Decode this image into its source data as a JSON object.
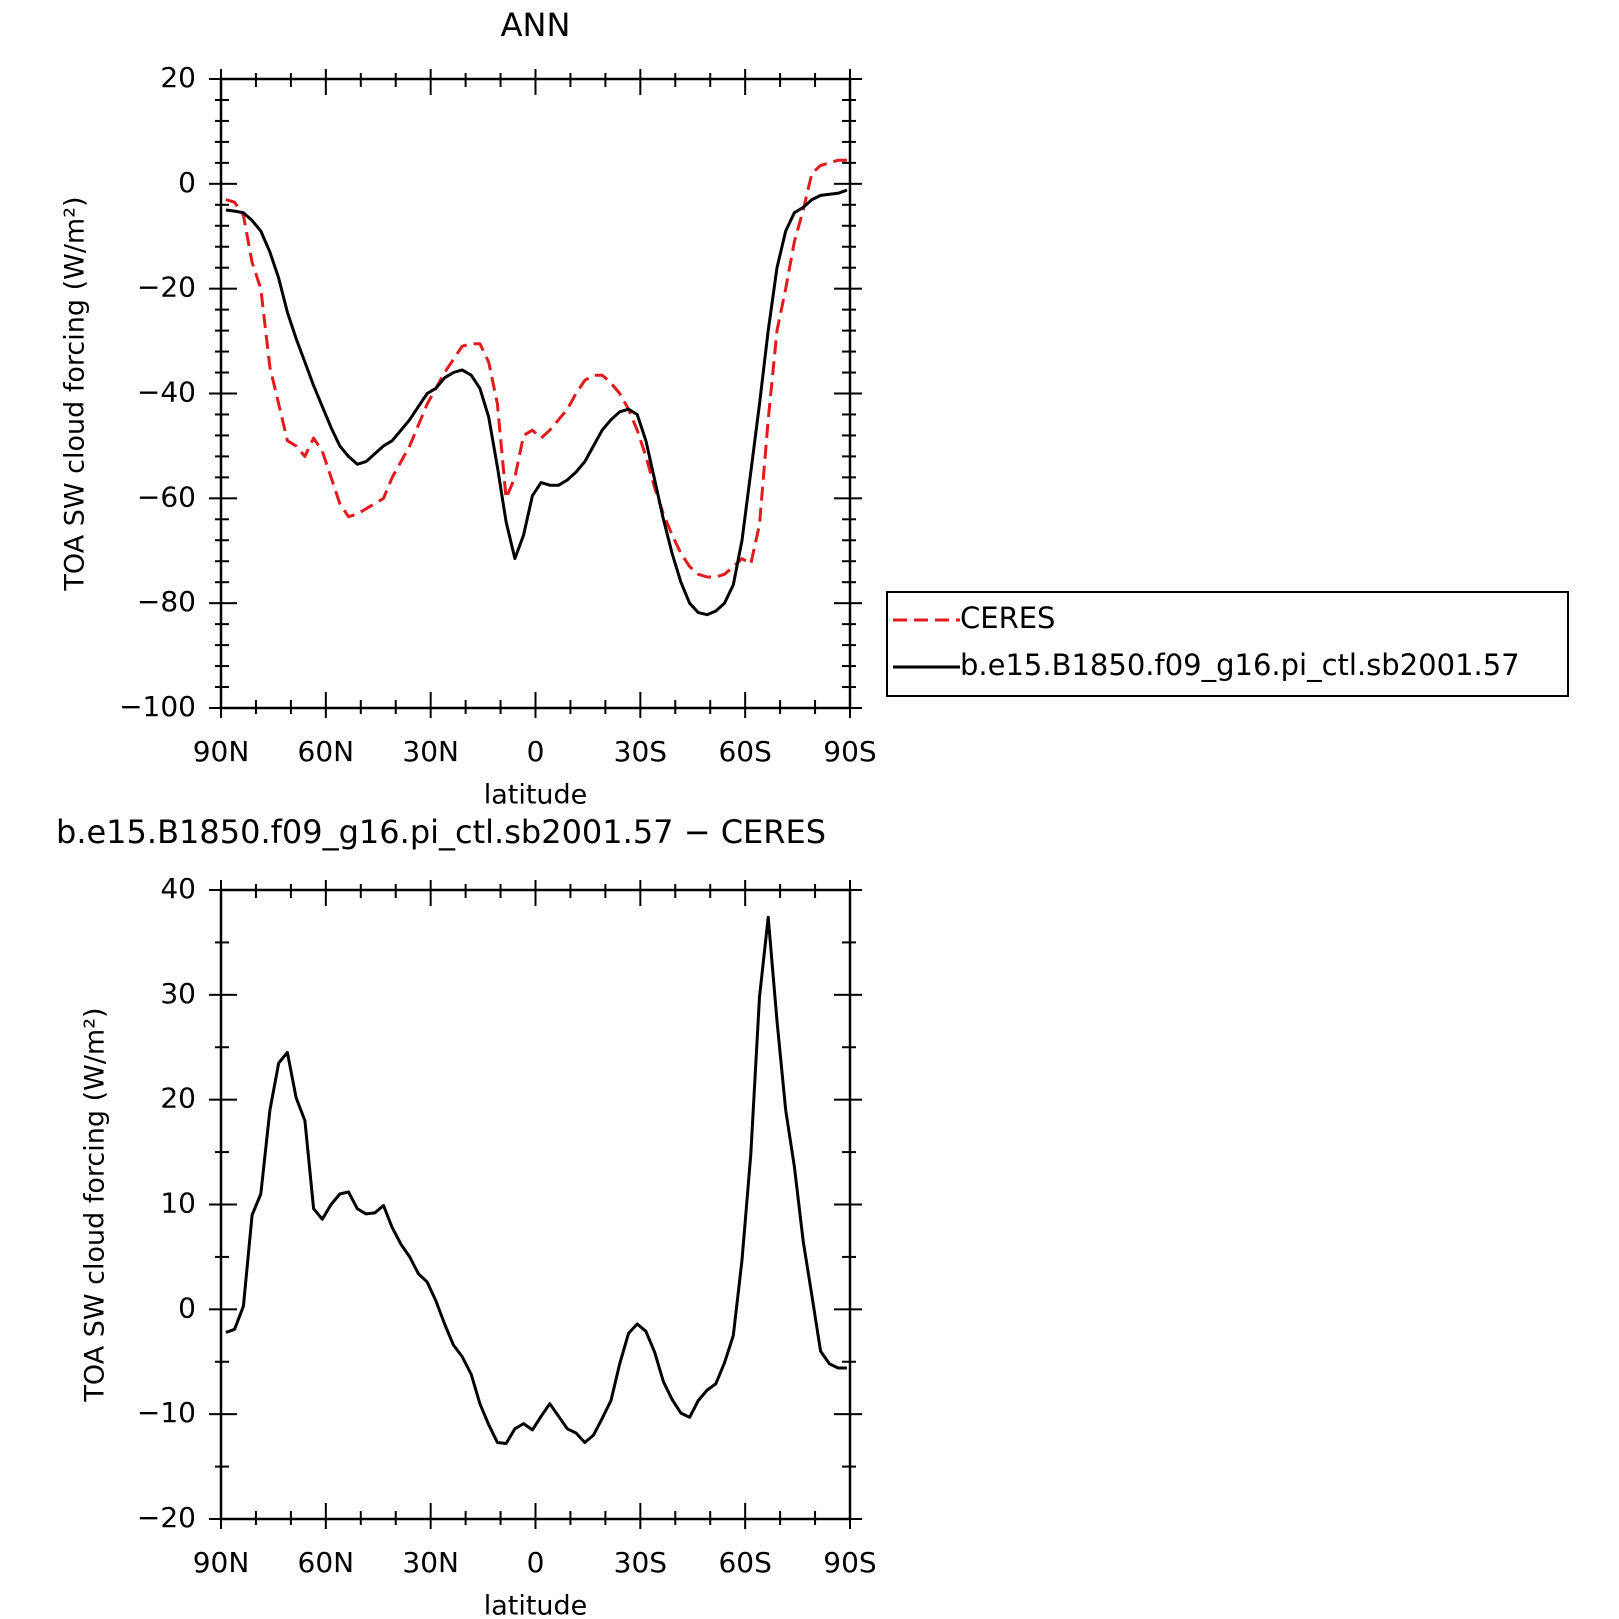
{
  "chart_data": [
    {
      "type": "line",
      "title": "ANN",
      "xlabel": "latitude",
      "ylabel": "TOA SW cloud forcing (W/m²)",
      "xlim": [
        90,
        -90
      ],
      "ylim": [
        -100,
        20
      ],
      "xticks": [
        90,
        60,
        30,
        0,
        -30,
        -60,
        -90
      ],
      "xtick_labels": [
        "90N",
        "60N",
        "30N",
        "0",
        "30S",
        "60S",
        "90S"
      ],
      "yticks": [
        20,
        0,
        -20,
        -40,
        -60,
        -80,
        -100
      ],
      "ytick_labels": [
        "20",
        "0",
        "−20",
        "−40",
        "−60",
        "−80",
        "−100"
      ],
      "legend_placement": "right",
      "series": [
        {
          "name": "CERES",
          "color": "#e31a1c",
          "dash": "dashed",
          "x": [
            88.6,
            86.1,
            83.6,
            81.1,
            78.6,
            76.0,
            73.5,
            71.0,
            68.5,
            66.0,
            63.5,
            61.0,
            58.5,
            56.0,
            53.5,
            51.0,
            48.5,
            46.0,
            43.5,
            41.0,
            38.5,
            36.0,
            33.5,
            31.0,
            28.5,
            26.0,
            23.5,
            21.0,
            18.4,
            15.9,
            13.4,
            10.9,
            8.4,
            5.9,
            3.4,
            0.9,
            -1.6,
            -4.1,
            -6.6,
            -9.1,
            -11.6,
            -14.1,
            -16.6,
            -19.1,
            -21.6,
            -24.1,
            -26.6,
            -29.1,
            -31.6,
            -34.1,
            -36.6,
            -39.1,
            -41.6,
            -44.1,
            -46.6,
            -49.1,
            -51.6,
            -54.1,
            -56.6,
            -59.1,
            -61.6,
            -64.1,
            -66.6,
            -69.1,
            -71.6,
            -74.1,
            -76.6,
            -79.1,
            -81.6,
            -84.1,
            -86.6,
            -89.1
          ],
          "y": [
            -3.0,
            -3.5,
            -6.0,
            -15.0,
            -20.0,
            -35.0,
            -42.0,
            -49.0,
            -50.0,
            -52.0,
            -48.5,
            -51.0,
            -56.0,
            -61.0,
            -63.5,
            -63.0,
            -62.0,
            -61.0,
            -60.0,
            -56.0,
            -53.0,
            -50.0,
            -46.0,
            -42.0,
            -39.0,
            -36.0,
            -33.5,
            -31.0,
            -30.5,
            -30.5,
            -34.0,
            -42.0,
            -60.0,
            -56.0,
            -48.0,
            -47.0,
            -48.5,
            -47.0,
            -45.0,
            -43.0,
            -40.0,
            -37.5,
            -36.5,
            -36.5,
            -38.0,
            -40.0,
            -43.0,
            -47.0,
            -52.0,
            -58.0,
            -63.0,
            -67.0,
            -70.5,
            -73.0,
            -74.5,
            -75.0,
            -75.0,
            -74.5,
            -73.0,
            -71.5,
            -72.5,
            -65.0,
            -45.0,
            -28.0,
            -20.0,
            -11.0,
            -5.0,
            2.0,
            3.5,
            4.0,
            4.5,
            4.5
          ]
        },
        {
          "name": "b.e15.B1850.f09_g16.pi_ctl.sb2001.57",
          "color": "#000000",
          "dash": "solid",
          "x": [
            88.6,
            86.1,
            83.6,
            81.1,
            78.6,
            76.0,
            73.5,
            71.0,
            68.5,
            66.0,
            63.5,
            61.0,
            58.5,
            56.0,
            53.5,
            51.0,
            48.5,
            46.0,
            43.5,
            41.0,
            38.5,
            36.0,
            33.5,
            31.0,
            28.5,
            26.0,
            23.5,
            21.0,
            18.4,
            15.9,
            13.4,
            10.9,
            8.4,
            5.9,
            3.4,
            0.9,
            -1.6,
            -4.1,
            -6.6,
            -9.1,
            -11.6,
            -14.1,
            -16.6,
            -19.1,
            -21.6,
            -24.1,
            -26.6,
            -29.1,
            -31.6,
            -34.1,
            -36.6,
            -39.1,
            -41.6,
            -44.1,
            -46.6,
            -49.1,
            -51.6,
            -54.1,
            -56.6,
            -59.1,
            -61.6,
            -64.1,
            -66.6,
            -69.1,
            -71.6,
            -74.1,
            -76.6,
            -79.1,
            -81.6,
            -84.1,
            -86.6,
            -89.1
          ],
          "y": [
            -5.0,
            -5.2,
            -5.5,
            -7.0,
            -9.0,
            -13.0,
            -18.0,
            -24.5,
            -29.5,
            -34.0,
            -38.5,
            -42.5,
            -46.5,
            -50.0,
            -52.0,
            -53.5,
            -53.0,
            -51.5,
            -50.0,
            -49.0,
            -47.0,
            -45.0,
            -42.5,
            -40.0,
            -39.0,
            -37.0,
            -36.0,
            -35.5,
            -36.5,
            -39.0,
            -44.5,
            -54.0,
            -64.5,
            -71.5,
            -67.0,
            -59.5,
            -57.0,
            -57.5,
            -57.5,
            -56.5,
            -55.0,
            -53.0,
            -50.0,
            -47.0,
            -45.0,
            -43.5,
            -43.0,
            -44.0,
            -49.0,
            -56.5,
            -64.0,
            -70.5,
            -76.0,
            -80.0,
            -81.8,
            -82.2,
            -81.5,
            -80.0,
            -76.5,
            -68.0,
            -55.0,
            -42.0,
            -28.0,
            -16.0,
            -9.0,
            -5.5,
            -4.5,
            -3.0,
            -2.2,
            -2.0,
            -1.8,
            -1.2
          ]
        }
      ]
    },
    {
      "type": "line",
      "title": "b.e15.B1850.f09_g16.pi_ctl.sb2001.57 − CERES",
      "xlabel": "latitude",
      "ylabel": "TOA SW cloud forcing (W/m²)",
      "xlim": [
        90,
        -90
      ],
      "ylim": [
        -20,
        40
      ],
      "xticks": [
        90,
        60,
        30,
        0,
        -30,
        -60,
        -90
      ],
      "xtick_labels": [
        "90N",
        "60N",
        "30N",
        "0",
        "30S",
        "60S",
        "90S"
      ],
      "yticks": [
        40,
        30,
        20,
        10,
        0,
        -10,
        -20
      ],
      "ytick_labels": [
        "40",
        "30",
        "20",
        "10",
        "0",
        "−10",
        "−20"
      ],
      "series": [
        {
          "color": "#000000",
          "dash": "solid",
          "x": [
            88.6,
            86.1,
            83.6,
            81.1,
            78.6,
            76.0,
            73.5,
            71.0,
            68.5,
            66.0,
            63.5,
            61.0,
            58.5,
            56.0,
            53.5,
            51.0,
            48.5,
            46.0,
            43.5,
            41.0,
            38.5,
            36.0,
            33.5,
            31.0,
            28.5,
            26.0,
            23.5,
            21.0,
            18.4,
            15.9,
            13.4,
            10.9,
            8.4,
            5.9,
            3.4,
            0.9,
            -1.6,
            -4.1,
            -6.6,
            -9.1,
            -11.6,
            -14.1,
            -16.6,
            -19.1,
            -21.6,
            -24.1,
            -26.6,
            -29.1,
            -31.6,
            -34.1,
            -36.6,
            -39.1,
            -41.6,
            -44.1,
            -46.6,
            -49.1,
            -51.6,
            -54.1,
            -56.6,
            -59.1,
            -61.6,
            -64.1,
            -66.6,
            -69.1,
            -71.6,
            -74.1,
            -76.6,
            -79.1,
            -81.6,
            -84.1,
            -86.6,
            -89.1
          ],
          "y": [
            -2.2,
            -1.9,
            0.3,
            9.0,
            11.0,
            19.0,
            23.5,
            24.5,
            20.2,
            18.0,
            9.6,
            8.6,
            10.0,
            11.0,
            11.2,
            9.6,
            9.1,
            9.2,
            9.9,
            7.8,
            6.2,
            5.0,
            3.4,
            2.6,
            0.8,
            -1.4,
            -3.4,
            -4.5,
            -6.2,
            -9.0,
            -11.0,
            -12.7,
            -12.8,
            -11.4,
            -10.9,
            -11.5,
            -10.2,
            -9.0,
            -10.2,
            -11.4,
            -11.8,
            -12.7,
            -12.0,
            -10.4,
            -8.7,
            -5.2,
            -2.3,
            -1.4,
            -2.1,
            -4.1,
            -6.9,
            -8.6,
            -9.9,
            -10.3,
            -8.7,
            -7.7,
            -7.1,
            -5.1,
            -2.5,
            4.7,
            14.8,
            29.8,
            37.4,
            27.5,
            19.0,
            13.6,
            6.5,
            1.3,
            -4.0,
            -5.2,
            -5.6,
            -5.6
          ]
        }
      ]
    }
  ]
}
